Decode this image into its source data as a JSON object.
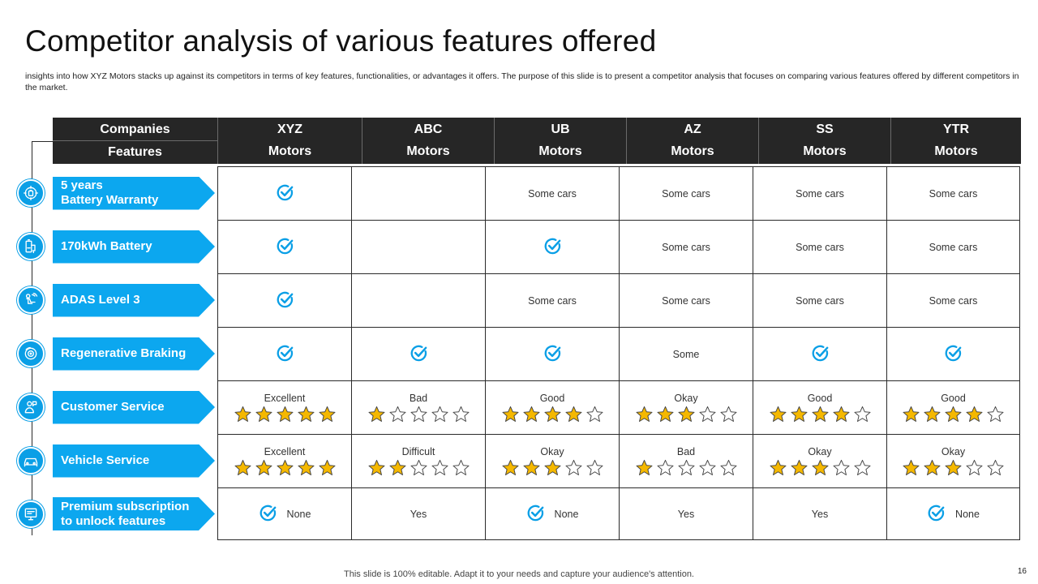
{
  "title": "Competitor analysis of various features offered",
  "subtitle": "insights into how XYZ Motors stacks up against its competitors in terms of key features, functionalities, or advantages it offers. The purpose of this slide is to present a competitor analysis that focuses on comparing various features offered by different competitors in the market.",
  "header": {
    "companies_label": "Companies",
    "features_label": "Features",
    "companies": [
      {
        "name": "XYZ",
        "suffix": "Motors"
      },
      {
        "name": "ABC",
        "suffix": "Motors"
      },
      {
        "name": "UB",
        "suffix": "Motors"
      },
      {
        "name": "AZ",
        "suffix": "Motors"
      },
      {
        "name": "SS",
        "suffix": "Motors"
      },
      {
        "name": "YTR",
        "suffix": "Motors"
      }
    ]
  },
  "features": [
    {
      "line1": "5 years",
      "line2": "Battery Warranty",
      "icon": "battery-warranty-icon"
    },
    {
      "line1": "170kWh Battery",
      "line2": "",
      "icon": "battery-icon"
    },
    {
      "line1": "ADAS Level 3",
      "line2": "",
      "icon": "driver-assist-icon"
    },
    {
      "line1": "Regenerative Braking",
      "line2": "",
      "icon": "brake-disc-icon"
    },
    {
      "line1": "Customer Service",
      "line2": "",
      "icon": "customer-service-icon"
    },
    {
      "line1": "Vehicle Service",
      "line2": "",
      "icon": "car-icon"
    },
    {
      "line1": "Premium subscription",
      "line2": "to unlock features",
      "icon": "subscription-icon"
    }
  ],
  "rows": [
    [
      {
        "check": true,
        "text": ""
      },
      {
        "check": false,
        "text": ""
      },
      {
        "check": false,
        "text": "Some cars"
      },
      {
        "check": false,
        "text": "Some cars"
      },
      {
        "check": false,
        "text": "Some cars"
      },
      {
        "check": false,
        "text": "Some cars"
      }
    ],
    [
      {
        "check": true,
        "text": ""
      },
      {
        "check": false,
        "text": ""
      },
      {
        "check": true,
        "text": ""
      },
      {
        "check": false,
        "text": "Some cars"
      },
      {
        "check": false,
        "text": "Some cars"
      },
      {
        "check": false,
        "text": "Some cars"
      }
    ],
    [
      {
        "check": true,
        "text": ""
      },
      {
        "check": false,
        "text": ""
      },
      {
        "check": false,
        "text": "Some cars"
      },
      {
        "check": false,
        "text": "Some cars"
      },
      {
        "check": false,
        "text": "Some cars"
      },
      {
        "check": false,
        "text": "Some cars"
      }
    ],
    [
      {
        "check": true,
        "text": ""
      },
      {
        "check": true,
        "text": ""
      },
      {
        "check": true,
        "text": ""
      },
      {
        "check": false,
        "text": "Some"
      },
      {
        "check": true,
        "text": ""
      },
      {
        "check": true,
        "text": ""
      }
    ],
    [
      {
        "text": "Excellent",
        "stars": 5
      },
      {
        "text": "Bad",
        "stars": 1
      },
      {
        "text": "Good",
        "stars": 4
      },
      {
        "text": "Okay",
        "stars": 3
      },
      {
        "text": "Good",
        "stars": 4
      },
      {
        "text": "Good",
        "stars": 4
      }
    ],
    [
      {
        "text": "Excellent",
        "stars": 5
      },
      {
        "text": "Difficult",
        "stars": 2
      },
      {
        "text": "Okay",
        "stars": 3
      },
      {
        "text": "Bad",
        "stars": 1
      },
      {
        "text": "Okay",
        "stars": 3
      },
      {
        "text": "Okay",
        "stars": 3
      }
    ],
    [
      {
        "check": true,
        "text": "None"
      },
      {
        "check": false,
        "text": "Yes"
      },
      {
        "check": true,
        "text": "None"
      },
      {
        "check": false,
        "text": "Yes"
      },
      {
        "check": false,
        "text": "Yes"
      },
      {
        "check": true,
        "text": "None"
      }
    ]
  ],
  "footer": "This slide is 100% editable. Adapt it to your needs and capture your audience's attention.",
  "page_number": "16",
  "colors": {
    "accent": "#0ca7ef",
    "header_bg": "#262626",
    "check": "#0a9fe6",
    "star_fill": "#f5b800",
    "star_stroke": "#444444"
  }
}
